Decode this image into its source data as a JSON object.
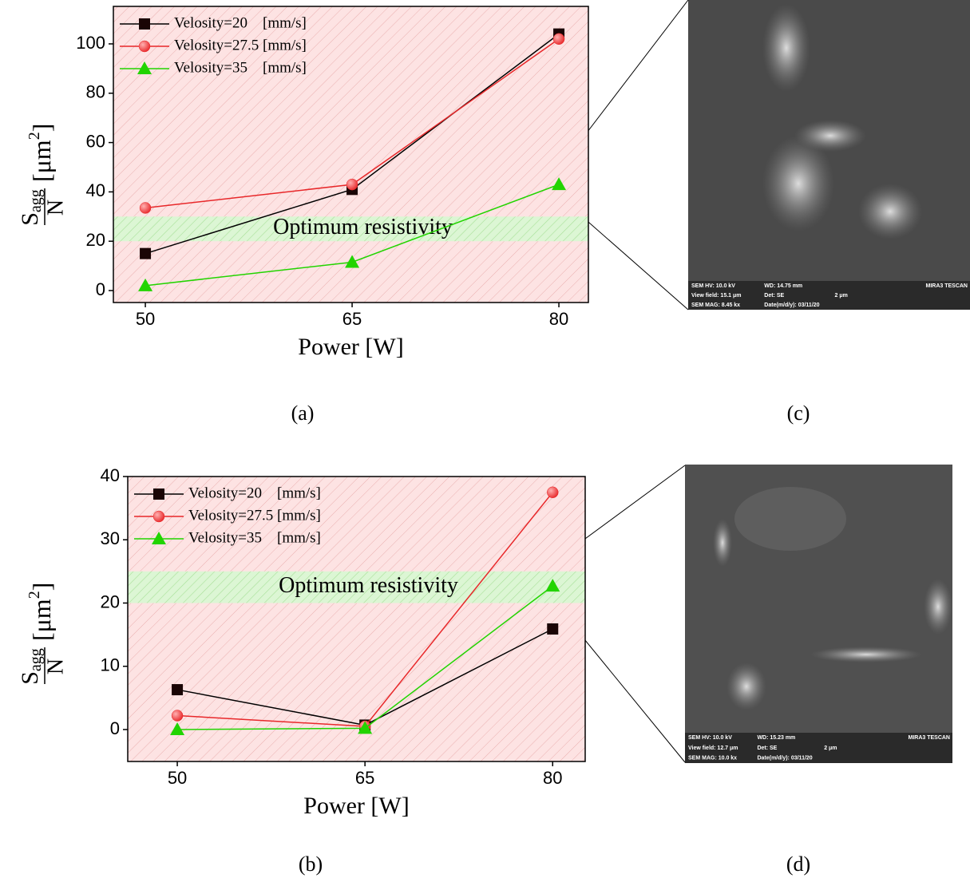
{
  "chart_data": [
    {
      "type": "line",
      "panel_label": "(a)",
      "xlabel": "Power [W]",
      "ylabel": {
        "numerator": "S",
        "subscript": "agg",
        "denominator": "N",
        "unit": "[μm",
        "unit_power": "2",
        "unit_close": "]"
      },
      "x": [
        50,
        65,
        80
      ],
      "xlim": [
        47.68,
        82.14
      ],
      "xticks": [
        50,
        65,
        80
      ],
      "ylim": [
        -4.85,
        115.2
      ],
      "yticks": [
        0,
        20,
        40,
        60,
        80,
        100
      ],
      "band": [
        20,
        30
      ],
      "band_label": "Optimum resistivity",
      "series": [
        {
          "name": "Velosity=20    [mm/s]",
          "color": "#000000",
          "marker": "square",
          "values": [
            15,
            41,
            104
          ]
        },
        {
          "name": "Velosity=27.5 [mm/s]",
          "color": "#e8282a",
          "marker": "circle",
          "values": [
            33.5,
            43,
            102
          ]
        },
        {
          "name": "Velosity=35    [mm/s]",
          "color": "#22d400",
          "marker": "triangle",
          "values": [
            2,
            11.5,
            43
          ]
        }
      ]
    },
    {
      "type": "line",
      "panel_label": "(b)",
      "xlabel": "Power [W]",
      "ylabel": {
        "numerator": "S",
        "subscript": "agg",
        "denominator": "N",
        "unit": "[μm",
        "unit_power": "2",
        "unit_close": "]"
      },
      "x": [
        50,
        65,
        80
      ],
      "xlim": [
        46.04,
        82.6
      ],
      "xticks": [
        50,
        65,
        80
      ],
      "ylim": [
        -5.05,
        40
      ],
      "yticks": [
        0,
        10,
        20,
        30,
        40
      ],
      "band": [
        20,
        25
      ],
      "band_label": "Optimum resistivity",
      "series": [
        {
          "name": "Velosity=20    [mm/s]",
          "color": "#000000",
          "marker": "square",
          "values": [
            6.3,
            0.7,
            15.9
          ]
        },
        {
          "name": "Velosity=27.5 [mm/s]",
          "color": "#e8282a",
          "marker": "circle",
          "values": [
            2.2,
            0.5,
            37.5
          ]
        },
        {
          "name": "Velosity=35    [mm/s]",
          "color": "#22d400",
          "marker": "triangle",
          "values": [
            0,
            0.2,
            22.7
          ]
        }
      ]
    }
  ],
  "images": [
    {
      "panel_label": "(c)",
      "info": [
        "SEM HV: 10.0 kV",
        "WD: 14.75 mm",
        "MIRA3 TESCAN",
        "View field: 15.1 μm",
        "Det: SE",
        "2 μm",
        "SEM MAG: 8.45 kx",
        "Date(m/d/y): 03/11/20"
      ]
    },
    {
      "panel_label": "(d)",
      "info": [
        "SEM HV: 10.0 kV",
        "WD: 15.23 mm",
        "MIRA3 TESCAN",
        "View field: 12.7 μm",
        "Det: SE",
        "2 μm",
        "SEM MAG: 10.0 kx",
        "Date(m/d/y): 03/11/20"
      ]
    }
  ]
}
